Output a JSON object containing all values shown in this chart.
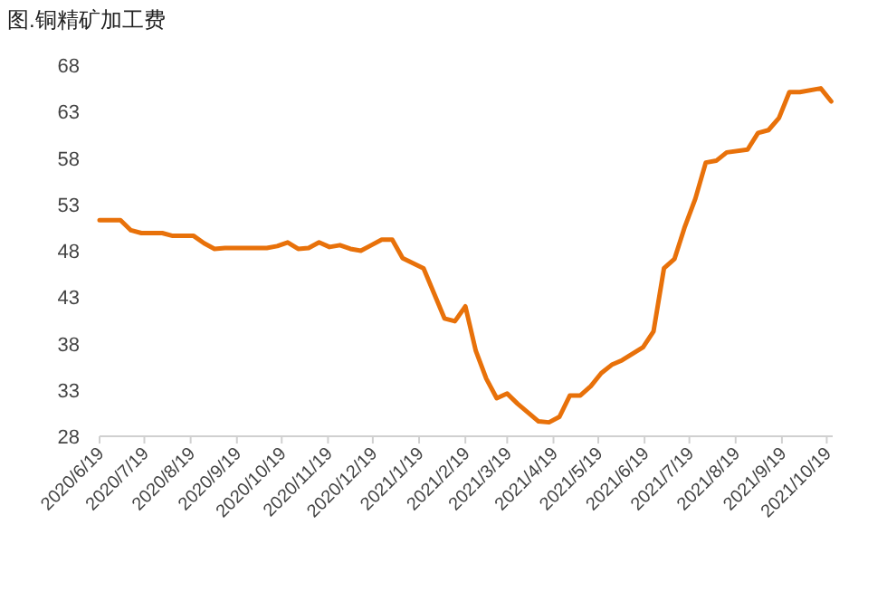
{
  "chart_data": {
    "type": "line",
    "title": "图.铜精矿加工费",
    "x": [
      "2020-06-19",
      "2020-07-03",
      "2020-07-10",
      "2020-07-17",
      "2020-07-31",
      "2020-08-07",
      "2020-08-21",
      "2020-08-28",
      "2020-09-04",
      "2020-09-11",
      "2020-10-09",
      "2020-10-16",
      "2020-10-23",
      "2020-10-30",
      "2020-11-06",
      "2020-11-13",
      "2020-11-20",
      "2020-11-27",
      "2020-12-04",
      "2020-12-11",
      "2020-12-18",
      "2020-12-25",
      "2021-01-01",
      "2021-01-08",
      "2021-01-22",
      "2021-02-05",
      "2021-02-12",
      "2021-02-19",
      "2021-02-26",
      "2021-03-05",
      "2021-03-12",
      "2021-03-19",
      "2021-03-26",
      "2021-04-09",
      "2021-04-16",
      "2021-04-23",
      "2021-04-30",
      "2021-05-07",
      "2021-05-14",
      "2021-05-21",
      "2021-05-28",
      "2021-06-04",
      "2021-06-18",
      "2021-06-25",
      "2021-07-02",
      "2021-07-09",
      "2021-07-16",
      "2021-07-23",
      "2021-07-30",
      "2021-08-06",
      "2021-08-13",
      "2021-08-27",
      "2021-09-03",
      "2021-09-10",
      "2021-09-17",
      "2021-09-24",
      "2021-10-01",
      "2021-10-15",
      "2021-10-22"
    ],
    "series": [
      {
        "color": "#e8710a",
        "values": [
          51.3,
          51.3,
          50.2,
          49.9,
          49.9,
          49.6,
          49.6,
          48.8,
          48.2,
          48.3,
          48.3,
          48.5,
          48.9,
          48.2,
          48.3,
          48.9,
          48.4,
          48.6,
          48.2,
          48.0,
          48.6,
          49.2,
          49.2,
          47.2,
          46.1,
          40.7,
          40.4,
          42.0,
          37.2,
          34.2,
          32.1,
          32.6,
          31.5,
          29.6,
          29.5,
          30.1,
          32.4,
          32.4,
          33.4,
          34.8,
          35.7,
          36.2,
          37.6,
          39.3,
          46.1,
          47.1,
          50.6,
          53.6,
          57.5,
          57.7,
          58.6,
          58.9,
          60.7,
          61.0,
          62.3,
          65.1,
          65.1,
          65.5,
          64.1
        ]
      }
    ],
    "xlim": [
      "2020-06-19",
      "2021-10-23"
    ],
    "xticks": [
      {
        "value": "2020-06-19",
        "label": "2020/6/19"
      },
      {
        "value": "2020-07-19",
        "label": "2020/7/19"
      },
      {
        "value": "2020-08-19",
        "label": "2020/8/19"
      },
      {
        "value": "2020-09-19",
        "label": "2020/9/19"
      },
      {
        "value": "2020-10-19",
        "label": "2020/10/19"
      },
      {
        "value": "2020-11-19",
        "label": "2020/11/19"
      },
      {
        "value": "2020-12-19",
        "label": "2020/12/19"
      },
      {
        "value": "2021-01-19",
        "label": "2021/1/19"
      },
      {
        "value": "2021-02-19",
        "label": "2021/2/19"
      },
      {
        "value": "2021-03-19",
        "label": "2021/3/19"
      },
      {
        "value": "2021-04-19",
        "label": "2021/4/19"
      },
      {
        "value": "2021-05-19",
        "label": "2021/5/19"
      },
      {
        "value": "2021-06-19",
        "label": "2021/6/19"
      },
      {
        "value": "2021-07-19",
        "label": "2021/7/19"
      },
      {
        "value": "2021-08-19",
        "label": "2021/8/19"
      },
      {
        "value": "2021-09-19",
        "label": "2021/9/19"
      },
      {
        "value": "2021-10-19",
        "label": "2021/10/19"
      }
    ],
    "ylim": [
      28,
      68
    ],
    "yticks": [
      28,
      33,
      38,
      43,
      48,
      53,
      58,
      63,
      68
    ],
    "grid": false,
    "marker": "none",
    "line_style": "solid"
  }
}
